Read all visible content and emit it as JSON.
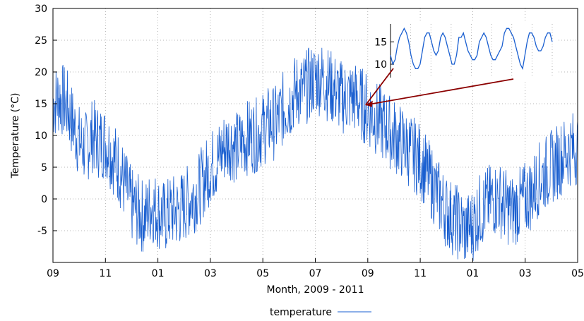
{
  "chart_data": {
    "type": "line",
    "xlabel": "Month, 2009 - 2011",
    "ylabel": "Temperature (°C)",
    "ylim": [
      -10,
      30
    ],
    "y_ticks": [
      -5,
      0,
      5,
      10,
      15,
      20,
      25,
      30
    ],
    "x_range_months": [
      0,
      20
    ],
    "x_ticks": [
      {
        "pos": 0,
        "label": "09"
      },
      {
        "pos": 2,
        "label": "11"
      },
      {
        "pos": 4,
        "label": "01"
      },
      {
        "pos": 6,
        "label": "03"
      },
      {
        "pos": 8,
        "label": "05"
      },
      {
        "pos": 10,
        "label": "07"
      },
      {
        "pos": 12,
        "label": "09"
      },
      {
        "pos": 14,
        "label": "11"
      },
      {
        "pos": 16,
        "label": "01"
      },
      {
        "pos": 18,
        "label": "03"
      },
      {
        "pos": 20,
        "label": "05"
      }
    ],
    "grid": true,
    "legend_position": "bottom-center",
    "series": [
      {
        "name": "temperature",
        "color": "#1a5fd0",
        "x": [
          0.0,
          0.25,
          0.5,
          0.75,
          1.0,
          1.25,
          1.5,
          1.75,
          2.0,
          2.25,
          2.5,
          2.75,
          3.0,
          3.25,
          3.5,
          3.75,
          4.0,
          4.25,
          4.5,
          4.75,
          5.0,
          5.25,
          5.5,
          5.75,
          6.0,
          6.25,
          6.5,
          6.75,
          7.0,
          7.25,
          7.5,
          7.75,
          8.0,
          8.25,
          8.5,
          8.75,
          9.0,
          9.25,
          9.5,
          9.75,
          10.0,
          10.25,
          10.5,
          10.75,
          11.0,
          11.25,
          11.5,
          11.75,
          12.0,
          12.25,
          12.5,
          12.75,
          13.0,
          13.25,
          13.5,
          13.75,
          14.0,
          14.25,
          14.5,
          14.75,
          15.0,
          15.25,
          15.5,
          15.75,
          16.0,
          16.25,
          16.5,
          16.75,
          17.0,
          17.25,
          17.5,
          17.75,
          18.0,
          18.25,
          18.5,
          18.75,
          19.0,
          19.25,
          19.5,
          19.75,
          20.0
        ],
        "y": [
          15,
          16,
          15,
          12,
          9,
          8,
          10,
          9,
          9,
          7,
          5,
          2,
          -1,
          -2,
          -3,
          -1,
          -2,
          -3,
          -2,
          -2,
          -1,
          0,
          1,
          3,
          5,
          6,
          8,
          9,
          8,
          9,
          10,
          10,
          11,
          12,
          12,
          14,
          15,
          17,
          17,
          18,
          19,
          19,
          18,
          17,
          16,
          16,
          16,
          15,
          14,
          13,
          12,
          11,
          10,
          9,
          8,
          7,
          6,
          4,
          2,
          0,
          -2,
          -3,
          -4,
          -5,
          -4,
          -2,
          -1,
          0,
          0,
          -1,
          -2,
          -1,
          0,
          1,
          3,
          4,
          5,
          6,
          7,
          8,
          8
        ]
      }
    ],
    "annotation": {
      "from_point": {
        "x": 11.92,
        "y": 14.8
      },
      "to_inset": true,
      "color": "#8b0000"
    },
    "inset": {
      "y_ticks": [
        10,
        15
      ],
      "ylim": [
        7,
        19
      ],
      "days": 8,
      "values": [
        12,
        10,
        11,
        14,
        16,
        17,
        18,
        17,
        15,
        12,
        10,
        9,
        9,
        10,
        13,
        16,
        17,
        17,
        15,
        13,
        12,
        13,
        16,
        17,
        16,
        14,
        12,
        10,
        10,
        12,
        16,
        16,
        17,
        15,
        13,
        12,
        11,
        11,
        12,
        15,
        16,
        17,
        16,
        14,
        12,
        11,
        11,
        12,
        13,
        14,
        17,
        18,
        18,
        17,
        16,
        14,
        12,
        10,
        9,
        12,
        15,
        17,
        17,
        16,
        14,
        13,
        13,
        14,
        16,
        17,
        17,
        15
      ]
    }
  },
  "legend": {
    "label": "temperature"
  }
}
